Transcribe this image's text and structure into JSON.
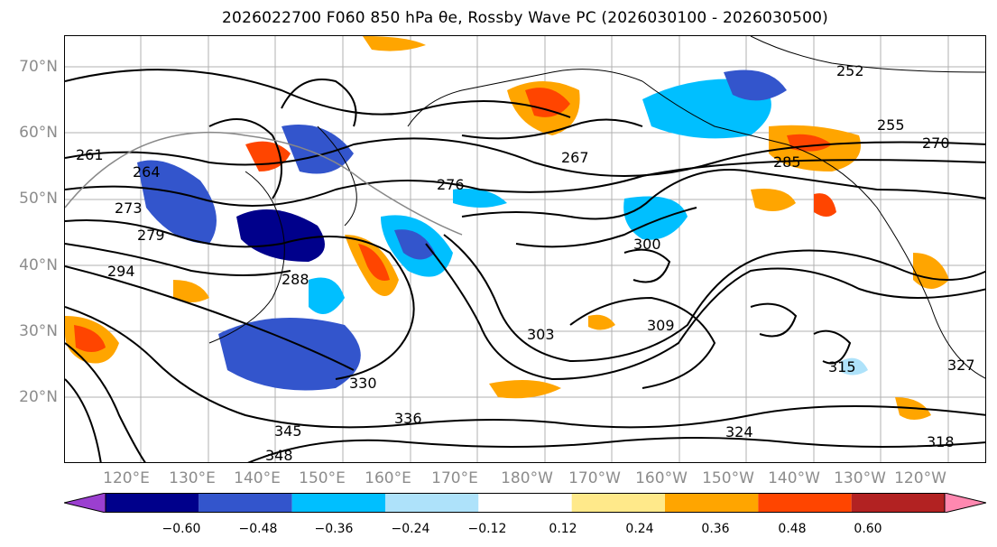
{
  "title": "2026022700 F060 850 hPa θe, Rossby Wave PC (2026030100 - 2026030500)",
  "latitude_labels": [
    "70°N",
    "60°N",
    "50°N",
    "40°N",
    "30°N",
    "20°N"
  ],
  "longitude_labels": [
    "120°E",
    "130°E",
    "140°E",
    "150°E",
    "160°E",
    "170°E",
    "180°W",
    "170°W",
    "160°W",
    "150°W",
    "140°W",
    "130°W",
    "120°W"
  ],
  "contour_labels": [
    "261",
    "264",
    "273",
    "279",
    "294",
    "288",
    "276",
    "267",
    "270",
    "252",
    "255",
    "285",
    "300",
    "303",
    "309",
    "315",
    "324",
    "330",
    "336",
    "345",
    "348",
    "318",
    "327"
  ],
  "colorbar": {
    "ticks": [
      "−0.60",
      "−0.48",
      "−0.36",
      "−0.24",
      "−0.12",
      "0.12",
      "0.24",
      "0.36",
      "0.48",
      "0.60"
    ],
    "colors": [
      "#9b3fd0",
      "#00008b",
      "#3355cc",
      "#00bfff",
      "#aee2fa",
      "#ffffff",
      "#ffe98a",
      "#ffa500",
      "#ff4500",
      "#b22222",
      "#ff88b0"
    ]
  }
}
